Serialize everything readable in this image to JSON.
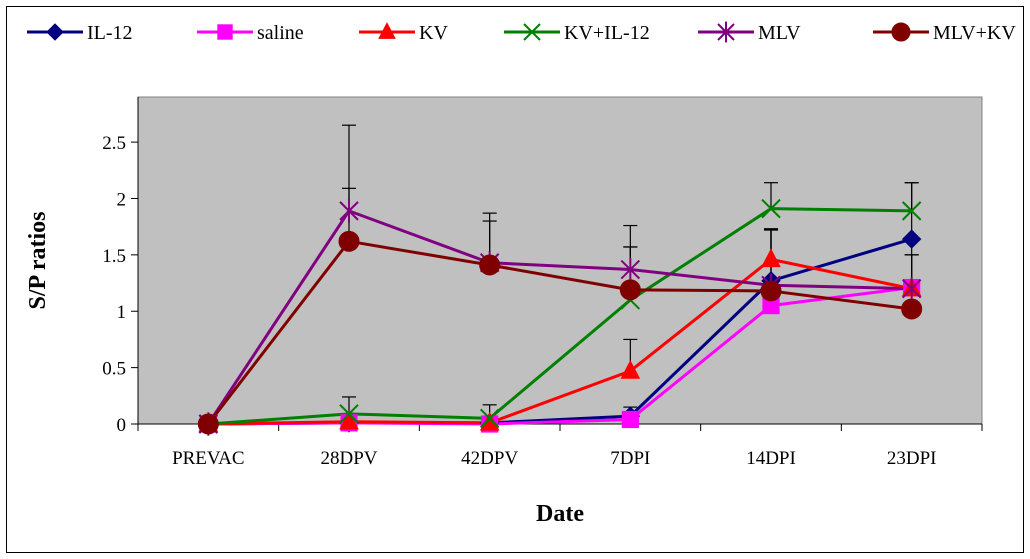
{
  "chart_data": {
    "type": "line",
    "xlabel": "Date",
    "ylabel": "S/P ratios",
    "categories": [
      "PREVAC",
      "28DPV",
      "42DPV",
      "7DPI",
      "14DPI",
      "23DPI"
    ],
    "ylim": [
      0,
      2.9
    ],
    "yticks": [
      0,
      0.5,
      1,
      1.5,
      2,
      2.5
    ],
    "ytick_labels": [
      "0",
      "0.5",
      "1",
      "1.5",
      "2",
      "2.5"
    ],
    "grid": false,
    "plot_background": "#c0c0c0",
    "legend_position": "top",
    "series": [
      {
        "name": "IL-12",
        "color": "#000080",
        "marker": "diamond",
        "values": [
          0,
          0.01,
          0.01,
          0.07,
          1.27,
          1.64
        ],
        "error": [
          0,
          0,
          0,
          0.08,
          0.45,
          0.5
        ]
      },
      {
        "name": "saline",
        "color": "#ff00ff",
        "marker": "square",
        "values": [
          0,
          0.01,
          0,
          0.04,
          1.05,
          1.21
        ],
        "error": [
          0,
          0,
          0,
          0,
          0,
          0
        ]
      },
      {
        "name": "KV",
        "color": "#ff0000",
        "marker": "triangle",
        "values": [
          0,
          0.02,
          0.01,
          0.47,
          1.46,
          1.2
        ],
        "error": [
          0,
          0,
          0,
          0.28,
          0.27,
          0.3
        ]
      },
      {
        "name": "KV+IL-12",
        "color": "#008000",
        "marker": "x",
        "values": [
          0,
          0.09,
          0.05,
          1.1,
          1.91,
          1.89
        ],
        "error": [
          0,
          0.15,
          0.12,
          0.47,
          0.23,
          0.25
        ]
      },
      {
        "name": "MLV",
        "color": "#800080",
        "marker": "star",
        "values": [
          0,
          1.89,
          1.43,
          1.37,
          1.23,
          1.2
        ],
        "error": [
          0,
          0.76,
          0.44,
          0.39,
          0.5,
          0.45
        ]
      },
      {
        "name": "MLV+KV",
        "color": "#800000",
        "marker": "circle",
        "values": [
          0,
          1.62,
          1.41,
          1.19,
          1.18,
          1.02
        ],
        "error": [
          0,
          0.47,
          0.39,
          0.38,
          0.55,
          0.48
        ]
      }
    ]
  }
}
